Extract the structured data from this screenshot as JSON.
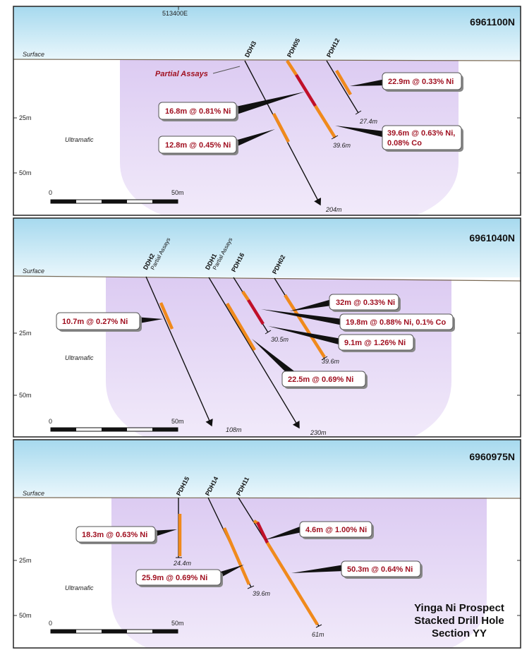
{
  "easting": "513400E",
  "sections": [
    {
      "northing": "6961100N",
      "surface": "Surface",
      "depth_labels": [
        "25m",
        "50m"
      ],
      "rock": "Ultramafic",
      "scale": [
        "0",
        "50m"
      ],
      "holes": [
        {
          "name": "DDH3",
          "depth": "204m"
        },
        {
          "name": "PDH05",
          "depth": "39.6m"
        },
        {
          "name": "PDH12",
          "depth": "27.4m"
        }
      ],
      "notes": [
        "Partial Assays"
      ],
      "intercepts": [
        "16.8m @ 0.81% Ni",
        "12.8m @ 0.45% Ni",
        "22.9m @ 0.33% Ni",
        "39.6m @ 0.63% Ni,",
        "0.08% Co"
      ]
    },
    {
      "northing": "6961040N",
      "surface": "Surface",
      "depth_labels": [
        "25m",
        "50m"
      ],
      "rock": "Ultramafic",
      "scale": [
        "0",
        "50m"
      ],
      "holes": [
        {
          "name": "DDH2",
          "depth": "108m"
        },
        {
          "name": "DDH1",
          "depth": "230m"
        },
        {
          "name": "PDH16",
          "depth": "30.5m"
        },
        {
          "name": "PDH02",
          "depth": "39.6m"
        }
      ],
      "notes": [
        "Partial Assays",
        "Partial Assays"
      ],
      "intercepts": [
        "10.7m @ 0.27% Ni",
        "32m @ 0.33% Ni",
        "19.8m @ 0.88% Ni, 0.1% Co",
        "9.1m @ 1.26% Ni",
        "22.5m @ 0.69% Ni"
      ]
    },
    {
      "northing": "6960975N",
      "surface": "Surface",
      "depth_labels": [
        "25m",
        "50m"
      ],
      "rock": "Ultramafic",
      "scale": [
        "0",
        "50m"
      ],
      "holes": [
        {
          "name": "PDH15",
          "depth": "24.4m"
        },
        {
          "name": "PDH14",
          "depth": "39.6m"
        },
        {
          "name": "PDH11",
          "depth": "61m"
        }
      ],
      "intercepts": [
        "18.3m @ 0.63% Ni",
        "4.6m @ 1.00% Ni",
        "25.9m @ 0.69% Ni",
        "50.3m @ 0.64% Ni"
      ]
    }
  ],
  "title": [
    "Yinga Ni Prospect",
    "Stacked Drill Hole",
    "Section YY"
  ]
}
